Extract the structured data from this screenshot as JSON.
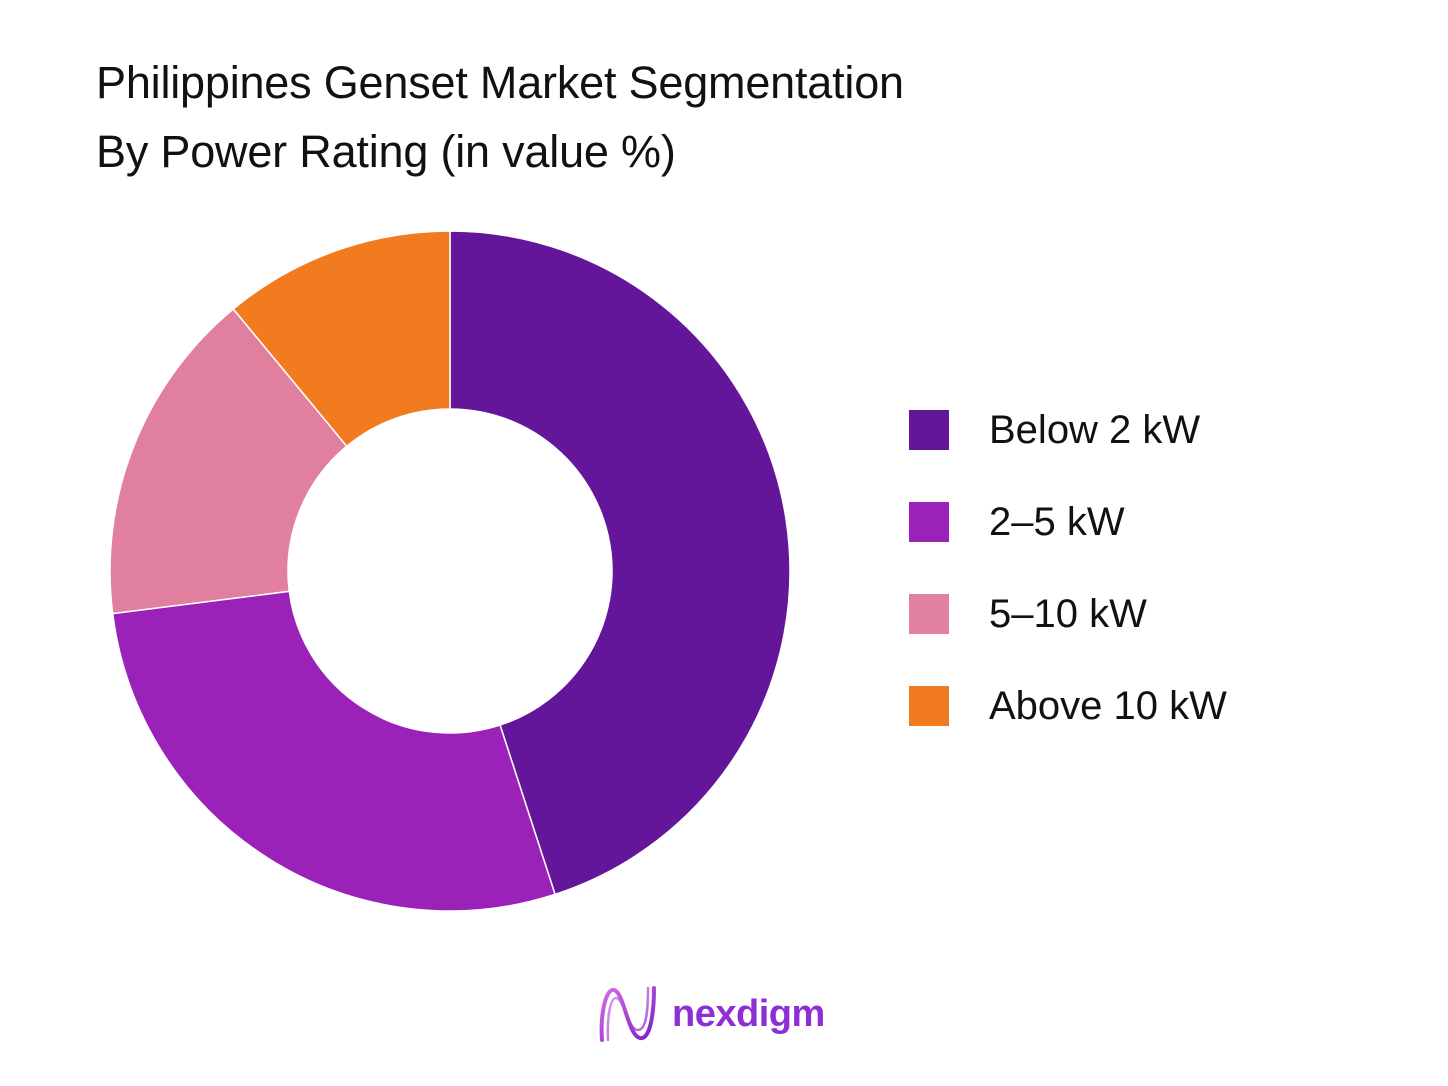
{
  "chart_data": {
    "type": "pie",
    "title_lines": [
      "Philippines Genset Market Segmentation",
      "By Power Rating (in value %)"
    ],
    "categories": [
      "Below 2 kW",
      "2–5 kW",
      "5–10 kW",
      "Above 10 kW"
    ],
    "values": [
      45,
      28,
      16,
      11
    ],
    "colors": [
      "#63169a",
      "#9a22b8",
      "#e07f9e",
      "#f27a1f"
    ],
    "donut": true,
    "legend_position": "right"
  },
  "logo": {
    "text": "nexdigm",
    "icon": "nexdigm-wave-icon",
    "color": "#8e2fd6"
  }
}
